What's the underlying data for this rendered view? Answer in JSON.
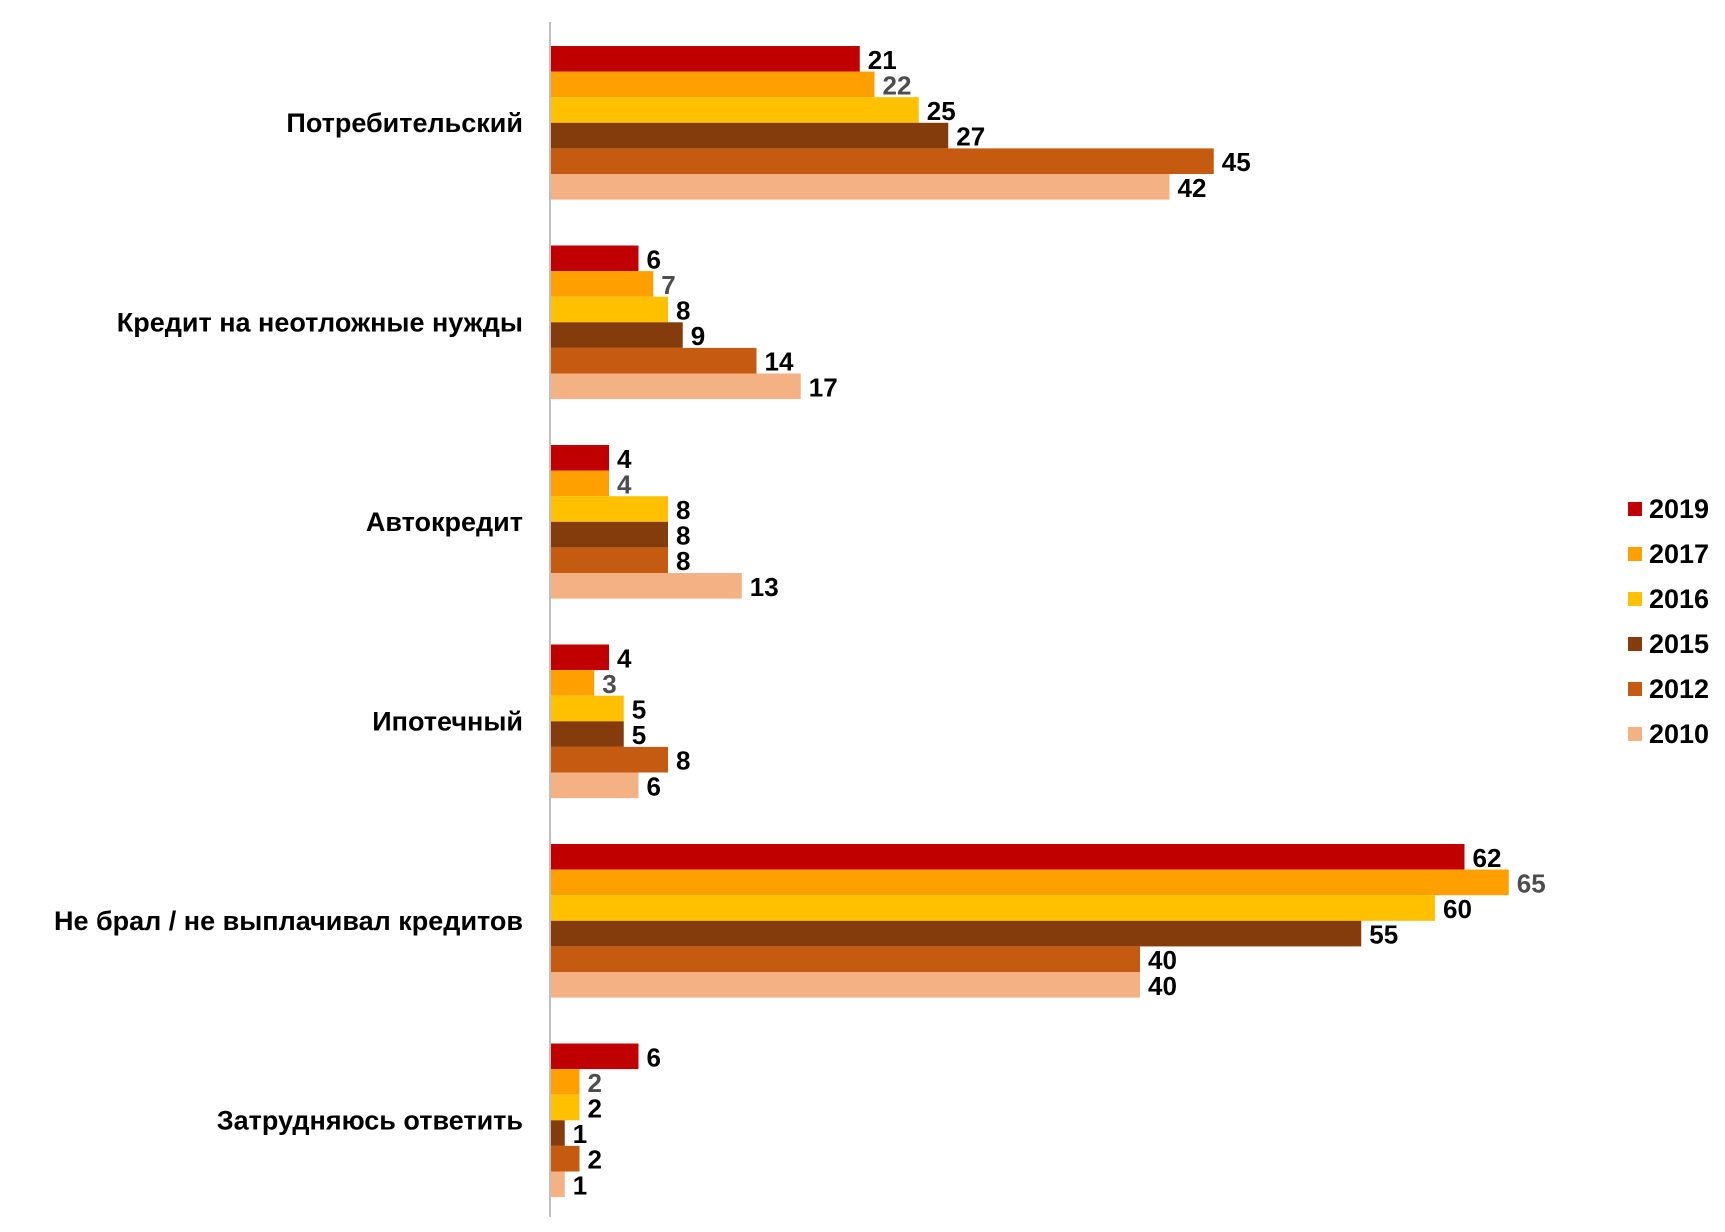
{
  "chart_data": {
    "type": "bar",
    "orientation": "horizontal",
    "categories": [
      "Потребительский",
      "Кредит на неотложные нужды",
      "Автокредит",
      "Ипотечный",
      "Не брал / не выплачивал кредитов",
      "Затрудняюсь ответить"
    ],
    "series": [
      {
        "name": "2019",
        "color": "#C00000",
        "label_color": "#000000",
        "values": [
          21,
          6,
          4,
          4,
          62,
          6
        ]
      },
      {
        "name": "2017",
        "color": "#FFA000",
        "label_color": "#4D4D4D",
        "values": [
          22,
          7,
          4,
          3,
          65,
          2
        ]
      },
      {
        "name": "2016",
        "color": "#FFC000",
        "label_color": "#000000",
        "values": [
          25,
          8,
          8,
          5,
          60,
          2
        ]
      },
      {
        "name": "2015",
        "color": "#843C0C",
        "label_color": "#000000",
        "values": [
          27,
          9,
          8,
          5,
          55,
          1
        ]
      },
      {
        "name": "2012",
        "color": "#C55A11",
        "label_color": "#000000",
        "values": [
          45,
          14,
          8,
          8,
          40,
          2
        ]
      },
      {
        "name": "2010",
        "color": "#F4B183",
        "label_color": "#000000",
        "values": [
          42,
          17,
          13,
          6,
          40,
          1
        ]
      }
    ],
    "xlim": [
      0,
      85
    ],
    "legend_position": "right",
    "grid": false,
    "data_labels": true,
    "title": "",
    "xlabel": "",
    "ylabel": ""
  }
}
